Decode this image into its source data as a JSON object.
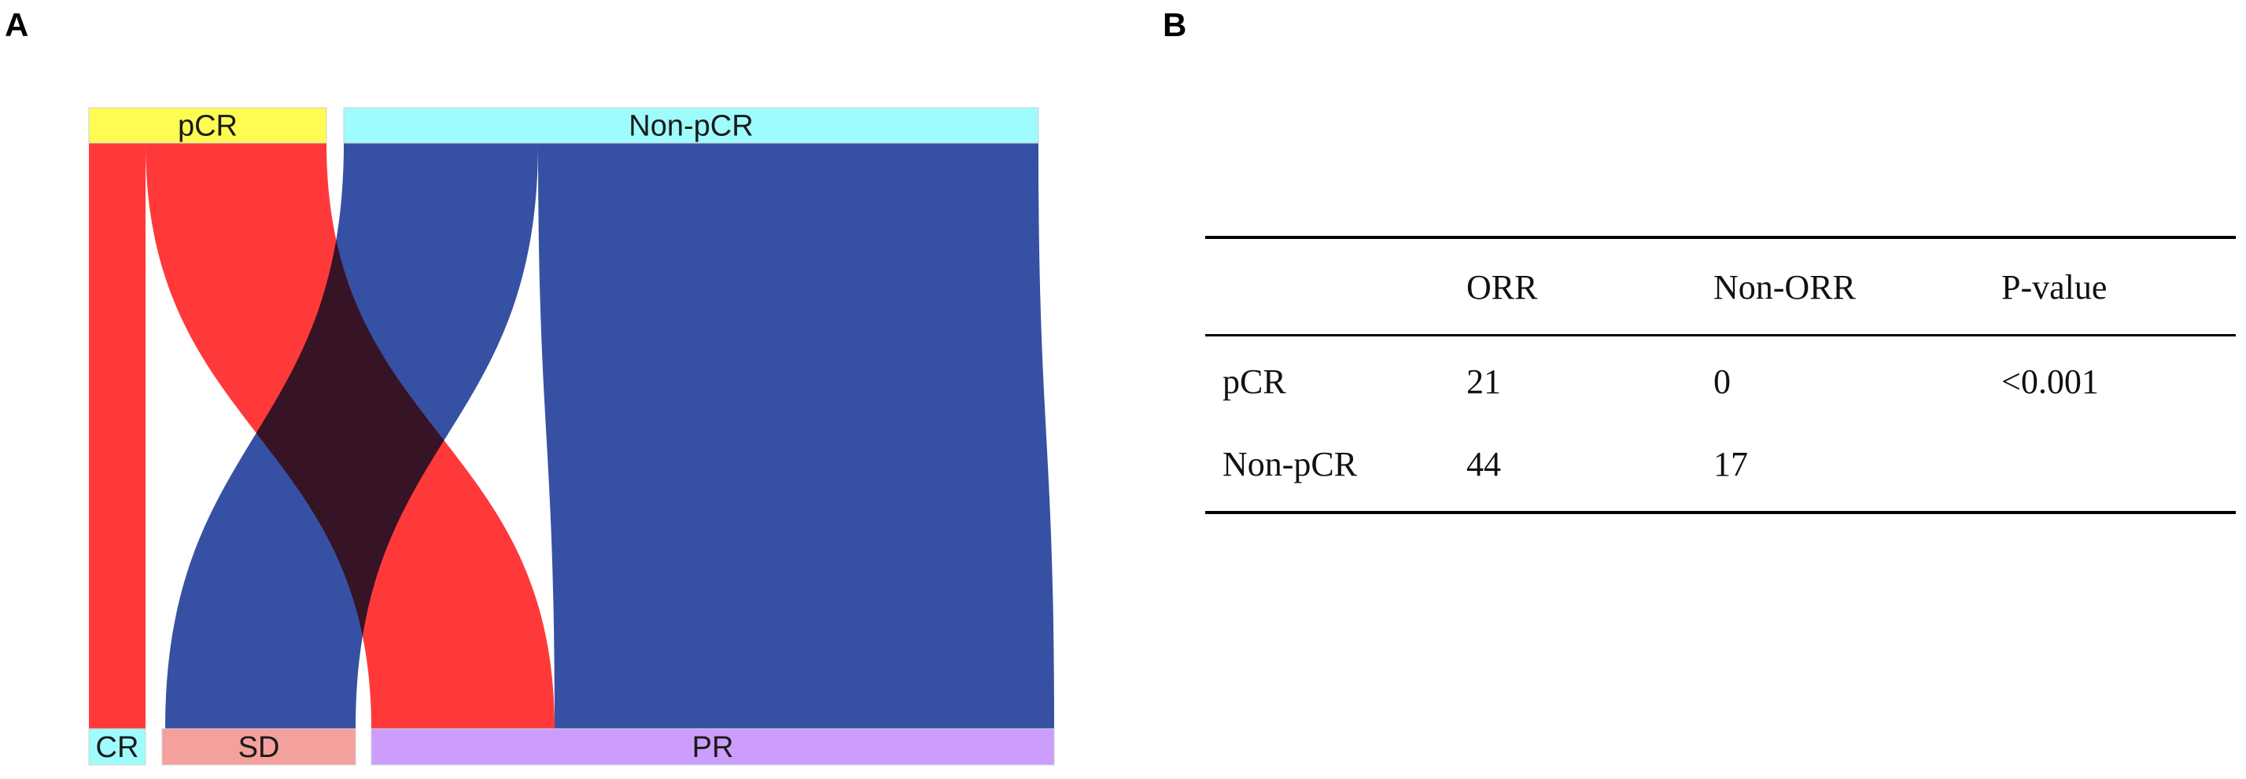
{
  "panels": {
    "a_label": "A",
    "b_label": "B"
  },
  "chart_data": [
    {
      "type": "sankey",
      "source_nodes": [
        {
          "name": "pCR",
          "color": "#fcfc53"
        },
        {
          "name": "Non-pCR",
          "color": "#9ffcfc"
        }
      ],
      "target_nodes": [
        {
          "name": "CR",
          "color": "#9ffcfc"
        },
        {
          "name": "SD",
          "color": "#f4a09d"
        },
        {
          "name": "PR",
          "color": "#cc9dfc"
        }
      ],
      "flows": [
        {
          "source": "pCR",
          "target": "CR",
          "color": "#ff2e2e"
        },
        {
          "source": "pCR",
          "target": "PR",
          "color": "#ff2e2e"
        },
        {
          "source": "Non-pCR",
          "target": "SD",
          "color": "#3651a3"
        },
        {
          "source": "Non-pCR",
          "target": "PR",
          "color": "#3651a3"
        }
      ]
    },
    {
      "type": "table",
      "columns": [
        "",
        "ORR",
        "Non-ORR",
        "P-value"
      ],
      "rows": [
        {
          "label": "pCR",
          "orr": "21",
          "non_orr": "0",
          "p_value": "<0.001"
        },
        {
          "label": "Non-pCR",
          "orr": "44",
          "non_orr": "17",
          "p_value": ""
        }
      ]
    }
  ]
}
